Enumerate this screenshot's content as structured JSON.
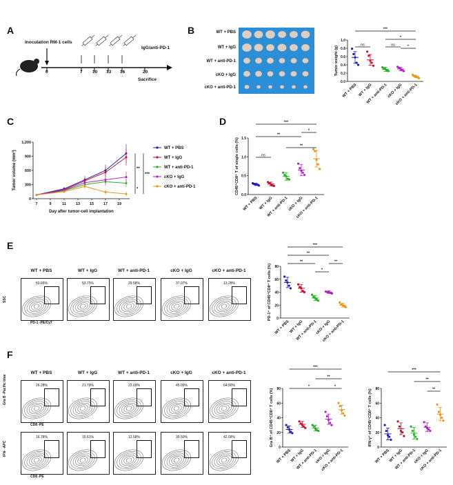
{
  "panels": [
    "A",
    "B",
    "C",
    "D",
    "E",
    "F"
  ],
  "panelA": {
    "label_inoculation": "Inoculation RM-1 cells",
    "label_treatment": "IgG/anti-PD-1",
    "label_sacrifice": "Sacrifice",
    "days": [
      "0",
      "7",
      "10",
      "13",
      "16",
      "20"
    ]
  },
  "panelB": {
    "rows": [
      "WT + PBS",
      "WT + IgG",
      "WT + anti-PD-1",
      "cKO + IgG",
      "cKO + anti-PD-1"
    ],
    "colors": {
      "tray": "#2a8fd6",
      "tumor": "#d9cfc5"
    }
  },
  "groups": [
    "WT + PBS",
    "WT + IgG",
    "WT + anti-PD-1",
    "cKO + IgG",
    "cKO + anti-PD-1"
  ],
  "group_colors": [
    "#1f1fb5",
    "#c8102e",
    "#22b322",
    "#b31fc8",
    "#e8961c"
  ],
  "flowE": {
    "xlabel": "PD-1 -PE/Cy7",
    "ylabel": "SSC",
    "titles": [
      "WT + PBS",
      "WT + IgG",
      "WT + anti-PD-1",
      "cKO + IgG",
      "cKO + anti-PD-1"
    ],
    "pcts": [
      "50.66%",
      "53.75%",
      "29.58%",
      "37.07%",
      "13.28%"
    ]
  },
  "flowF1": {
    "xlabel": "CD8 -PE",
    "ylabel": "Gra B -Pacific blue",
    "titles": [
      "WT + PBS",
      "WT + IgG",
      "WT + anti-PD-1",
      "cKO + IgG",
      "cKO + anti-PD-1"
    ],
    "pcts": [
      "26.28%",
      "21.79%",
      "22.69%",
      "45.09%",
      "64.90%"
    ]
  },
  "flowF2": {
    "xlabel": "CD8 -PE",
    "ylabel": "IFN- -APC",
    "pcts": [
      "16.78%",
      "15.61%",
      "12.58%",
      "30.50%",
      "42.09%"
    ]
  },
  "chart_data": [
    {
      "id": "B",
      "type": "scatter",
      "ylabel": "Tumor weight (g)",
      "ylim": [
        0,
        1.0
      ],
      "yticks": [
        "0.0",
        "0.2",
        "0.4",
        "0.6",
        "0.8",
        "1.0"
      ],
      "categories": [
        "WT + PBS",
        "WT + IgG",
        "WT + anti-PD-1",
        "cKO + IgG",
        "cKO + anti-PD-1"
      ],
      "means": [
        0.58,
        0.52,
        0.29,
        0.3,
        0.12
      ],
      "sds": [
        0.14,
        0.13,
        0.05,
        0.04,
        0.03
      ],
      "points": [
        [
          0.79,
          0.66,
          0.58,
          0.45,
          0.4
        ],
        [
          0.72,
          0.62,
          0.5,
          0.45,
          0.38
        ],
        [
          0.34,
          0.32,
          0.3,
          0.26,
          0.25
        ],
        [
          0.35,
          0.33,
          0.3,
          0.27,
          0.25
        ],
        [
          0.16,
          0.13,
          0.12,
          0.1,
          0.08
        ]
      ],
      "sig": [
        [
          "ns",
          0,
          1
        ],
        [
          "ns",
          2,
          3
        ],
        [
          "*",
          3,
          4
        ],
        [
          "*",
          2,
          4
        ],
        [
          "***",
          0,
          4
        ]
      ]
    },
    {
      "id": "C",
      "type": "line",
      "xlabel": "Day after tumor-cell implantation",
      "ylabel": "Tumor volume (mm³)",
      "x": [
        7,
        9,
        11,
        13,
        15,
        17,
        19
      ],
      "xticks": [
        "7",
        "9",
        "11",
        "13",
        "15",
        "17",
        "19"
      ],
      "ylim": [
        0,
        1200
      ],
      "yticks": [
        "0",
        "300",
        "600",
        "900",
        "1,200"
      ],
      "legend": "right",
      "series": [
        {
          "name": "WT + PBS",
          "x": [
            7,
            11,
            14,
            17,
            20
          ],
          "values": [
            80,
            210,
            400,
            600,
            960
          ],
          "err": [
            10,
            40,
            80,
            120,
            200
          ]
        },
        {
          "name": "WT + IgG",
          "x": [
            7,
            11,
            14,
            17,
            20
          ],
          "values": [
            80,
            190,
            380,
            560,
            880
          ],
          "err": [
            10,
            40,
            70,
            110,
            180
          ]
        },
        {
          "name": "WT + anti-PD-1",
          "x": [
            7,
            11,
            14,
            17,
            20
          ],
          "values": [
            80,
            170,
            300,
            360,
            330
          ],
          "err": [
            10,
            30,
            60,
            80,
            80
          ]
        },
        {
          "name": "cKO + IgG",
          "x": [
            7,
            11,
            14,
            17,
            20
          ],
          "values": [
            80,
            180,
            340,
            400,
            460
          ],
          "err": [
            10,
            35,
            60,
            90,
            110
          ]
        },
        {
          "name": "cKO + anti-PD-1",
          "x": [
            7,
            11,
            14,
            17,
            20
          ],
          "values": [
            80,
            150,
            260,
            140,
            100
          ],
          "err": [
            10,
            30,
            50,
            60,
            50
          ]
        }
      ],
      "sig": [
        "**",
        "*",
        "***"
      ]
    },
    {
      "id": "D",
      "type": "scatter",
      "ylabel": "CD45⁺CD8⁺ T of single cells (%)",
      "ylim": [
        0,
        1.5
      ],
      "yticks": [
        "0.0",
        "0.5",
        "1.0",
        "1.5"
      ],
      "categories": [
        "WT + PBS",
        "WT + IgG",
        "WT + anti-PD-1",
        "cKO + IgG",
        "cKO + anti-PD-1"
      ],
      "means": [
        0.27,
        0.28,
        0.48,
        0.65,
        0.95
      ],
      "sds": [
        0.03,
        0.05,
        0.1,
        0.15,
        0.22
      ],
      "points": [
        [
          0.3,
          0.28,
          0.27,
          0.26,
          0.24
        ],
        [
          0.33,
          0.3,
          0.27,
          0.24,
          0.23
        ],
        [
          0.58,
          0.52,
          0.48,
          0.42,
          0.4
        ],
        [
          0.82,
          0.7,
          0.63,
          0.58,
          0.52
        ],
        [
          1.2,
          1.15,
          0.92,
          0.8,
          0.68
        ]
      ],
      "sig": [
        [
          "ns",
          0,
          1
        ],
        [
          "**",
          0,
          3
        ],
        [
          "**",
          2,
          4
        ],
        [
          "*",
          3,
          4
        ],
        [
          "***",
          0,
          4
        ]
      ]
    },
    {
      "id": "E",
      "type": "scatter",
      "ylabel": "PD-1⁺ of CD45⁺CD8⁺ T cells (%)",
      "ylim": [
        0,
        80
      ],
      "yticks": [
        "0",
        "20",
        "40",
        "60",
        "80"
      ],
      "categories": [
        "WT + PBS",
        "WT + IgG",
        "WT + anti-PD-1",
        "cKO + IgG",
        "cKO + anti-PD-1"
      ],
      "means": [
        55,
        46,
        31,
        40,
        20
      ],
      "sds": [
        8,
        6,
        4,
        2,
        3
      ],
      "points": [
        [
          64,
          58,
          55,
          50,
          46
        ],
        [
          52,
          48,
          46,
          42,
          40
        ],
        [
          36,
          33,
          31,
          29,
          27
        ],
        [
          41,
          40,
          40,
          39,
          38
        ],
        [
          24,
          21,
          20,
          18,
          17
        ]
      ],
      "sig": [
        [
          "**",
          0,
          2
        ],
        [
          "**",
          0,
          3
        ],
        [
          "*",
          2,
          3
        ],
        [
          "**",
          3,
          4
        ],
        [
          "***",
          0,
          4
        ]
      ]
    },
    {
      "id": "F1",
      "type": "scatter",
      "ylabel": "Gra B⁺ of CD45⁺CD8⁺ T cells (%)",
      "ylim": [
        0,
        80
      ],
      "yticks": [
        "0",
        "20",
        "40",
        "60",
        "80"
      ],
      "categories": [
        "WT + PBS",
        "WT + IgG",
        "WT + anti-PD-1",
        "cKO + IgG",
        "cKO + anti-PD-1"
      ],
      "means": [
        24,
        31,
        26,
        38,
        51
      ],
      "sds": [
        5,
        4,
        4,
        7,
        6
      ],
      "points": [
        [
          30,
          27,
          24,
          21,
          19
        ],
        [
          35,
          32,
          30,
          28,
          26
        ],
        [
          30,
          28,
          25,
          23,
          22
        ],
        [
          48,
          42,
          37,
          33,
          30
        ],
        [
          60,
          56,
          50,
          46,
          43
        ]
      ],
      "sig": [
        [
          "*",
          0,
          3
        ],
        [
          "**",
          2,
          4
        ],
        [
          "*",
          3,
          4
        ],
        [
          "***",
          0,
          4
        ]
      ]
    },
    {
      "id": "F2",
      "type": "scatter",
      "ylabel": "IFN-γ⁺ of CD45⁺CD8⁺ T cells (%)",
      "ylim": [
        0,
        80
      ],
      "yticks": [
        "0",
        "20",
        "40",
        "60",
        "80"
      ],
      "categories": [
        "WT + PBS",
        "WT + IgG",
        "WT + anti-PD-1",
        "cKO + IgG",
        "cKO + anti-PD-1"
      ],
      "means": [
        18,
        25,
        19,
        27,
        45
      ],
      "sds": [
        8,
        8,
        8,
        6,
        9
      ],
      "points": [
        [
          30,
          22,
          16,
          14,
          10
        ],
        [
          35,
          28,
          22,
          20,
          15
        ],
        [
          28,
          22,
          17,
          14,
          11
        ],
        [
          34,
          28,
          26,
          24,
          22
        ],
        [
          58,
          48,
          44,
          40,
          36
        ]
      ],
      "sig": [
        [
          "**",
          3,
          4
        ],
        [
          "**",
          2,
          4
        ],
        [
          "***",
          0,
          4
        ]
      ]
    }
  ]
}
